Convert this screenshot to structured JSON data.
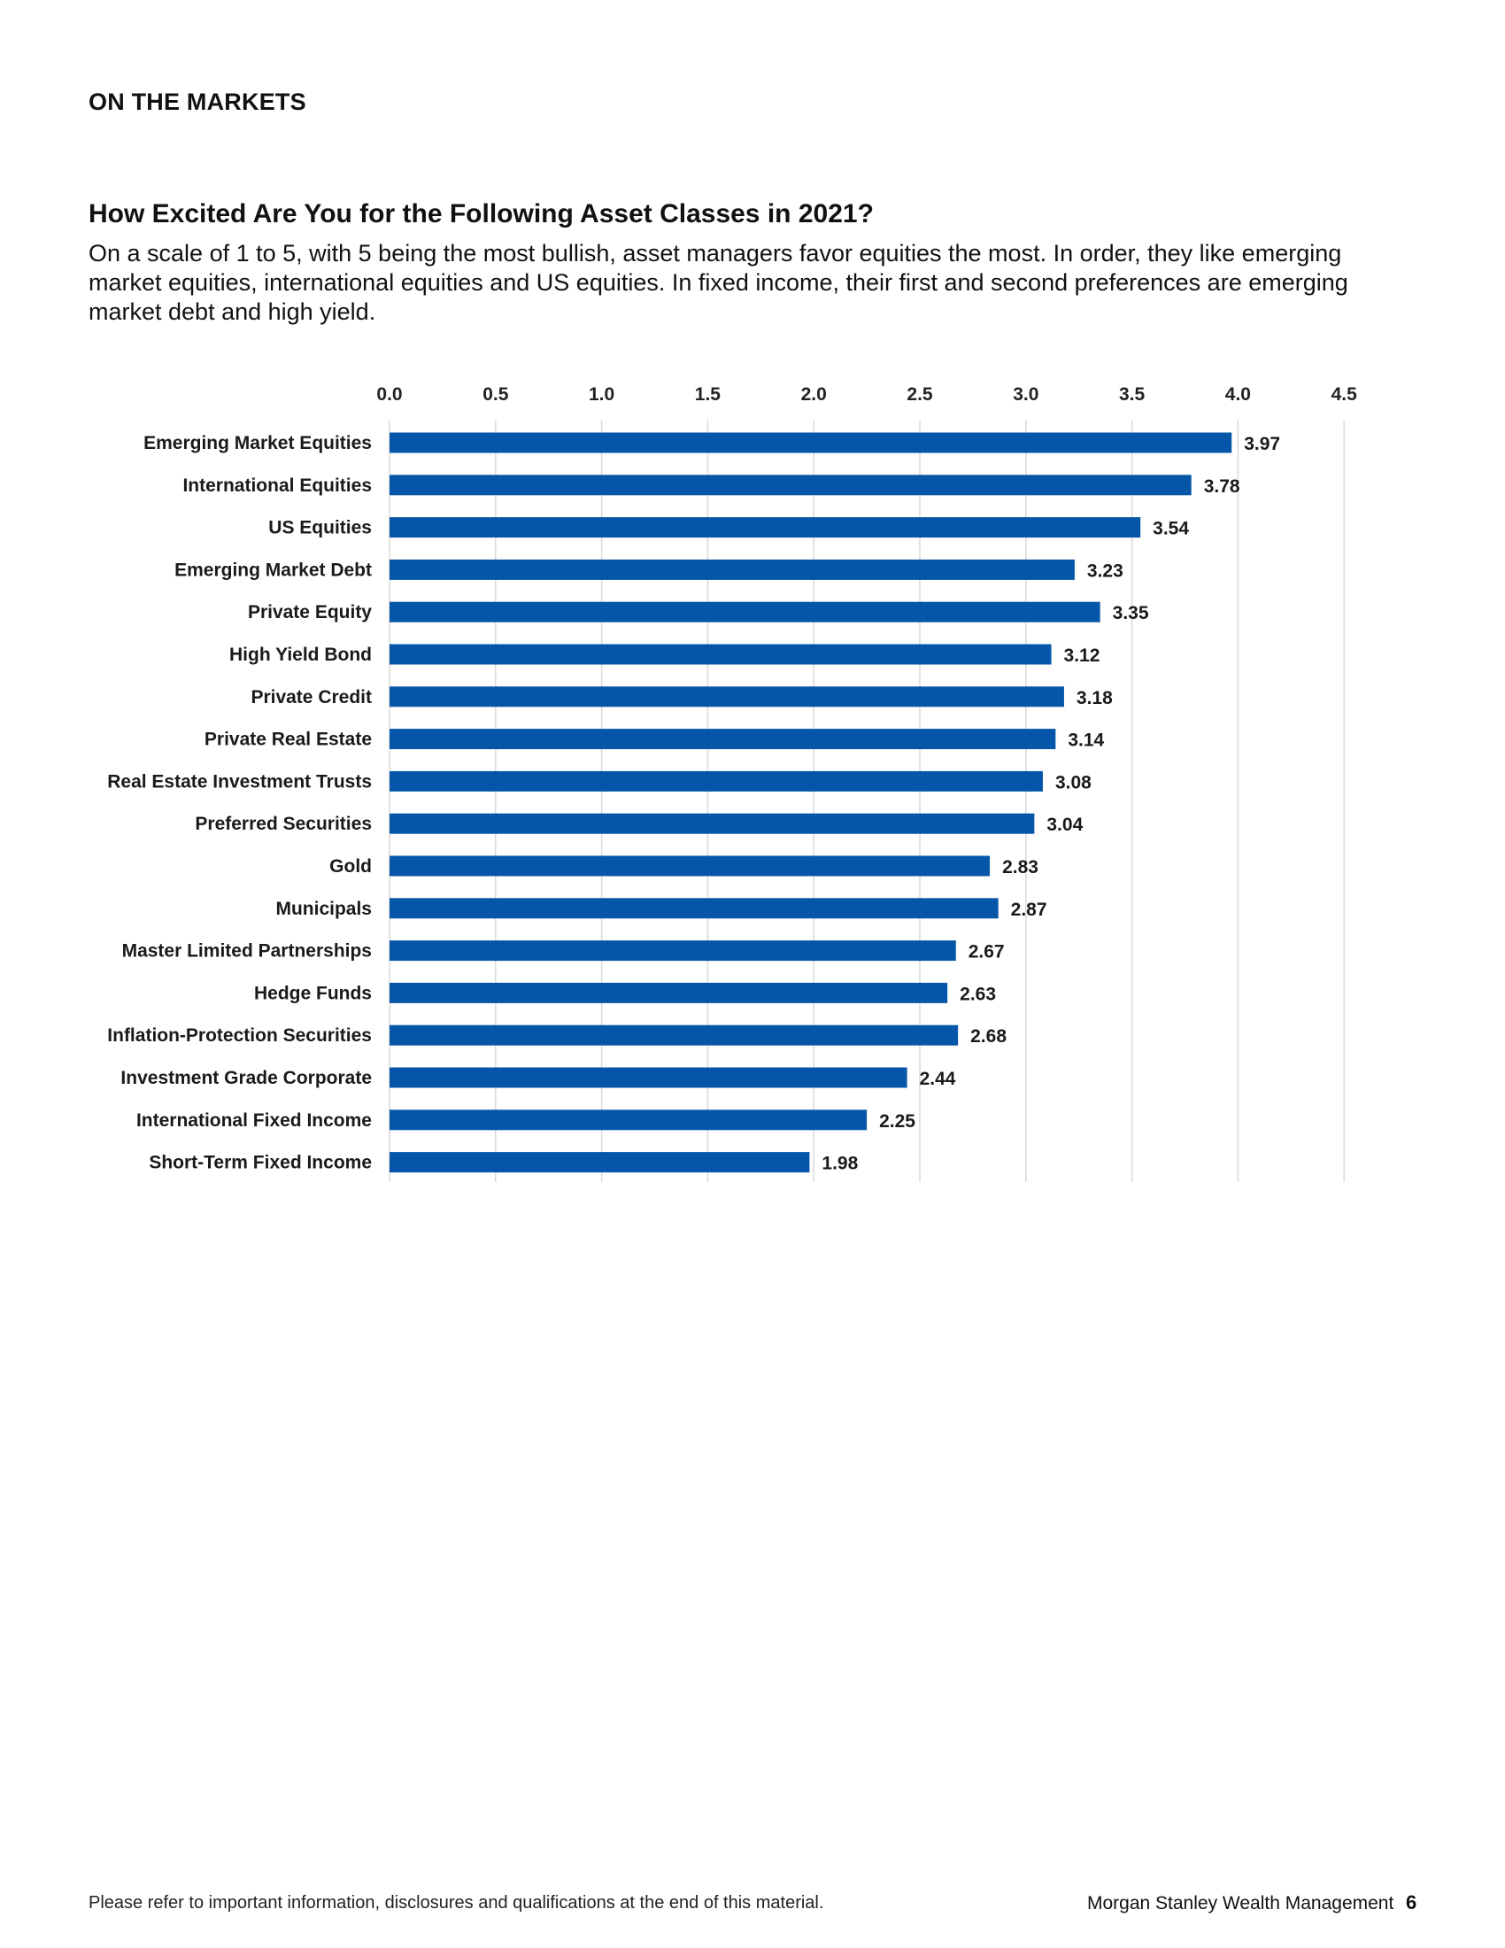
{
  "header": {
    "section": "ON THE MARKETS"
  },
  "figure": {
    "title": "How Excited Are You for the Following Asset Classes in 2021?",
    "description": "On a scale of 1 to 5, with 5 being the most bullish, asset managers favor equities the most. In order, they like emerging market equities, international equities and US equities. In fixed income, their first and second preferences are emerging market debt and high yield."
  },
  "chart_data": {
    "type": "bar",
    "orientation": "horizontal",
    "categories": [
      "Emerging Market Equities",
      "International Equities",
      "US Equities",
      "Emerging Market Debt",
      "Private Equity",
      "High Yield Bond",
      "Private Credit",
      "Private Real Estate",
      "Real Estate Investment Trusts",
      "Preferred Securities",
      "Gold",
      "Municipals",
      "Master Limited Partnerships",
      "Hedge Funds",
      "Inflation-Protection Securities",
      "Investment Grade Corporate",
      "International Fixed Income",
      "Short-Term Fixed Income"
    ],
    "values": [
      3.97,
      3.78,
      3.54,
      3.23,
      3.35,
      3.12,
      3.18,
      3.14,
      3.08,
      3.04,
      2.83,
      2.87,
      2.67,
      2.63,
      2.68,
      2.44,
      2.25,
      1.98
    ],
    "value_labels": [
      "3.97",
      "3.78",
      "3.54",
      "3.23",
      "3.35",
      "3.12",
      "3.18",
      "3.14",
      "3.08",
      "3.04",
      "2.83",
      "2.87",
      "2.67",
      "2.63",
      "2.68",
      "2.44",
      "2.25",
      "1.98"
    ],
    "xlim": [
      0,
      4.5
    ],
    "ticks": [
      0,
      0.5,
      1.0,
      1.5,
      2.0,
      2.5,
      3.0,
      3.5,
      4.0,
      4.5
    ],
    "tick_labels": [
      "0.0",
      "0.5",
      "1.0",
      "1.5",
      "2.0",
      "2.5",
      "3.0",
      "3.5",
      "4.0",
      "4.5"
    ],
    "axis_position": "top",
    "grid": true,
    "legend": "none",
    "colors": {
      "bar": "#0556a8",
      "grid": "#d9d9d9"
    }
  },
  "footer": {
    "disclaimer": "Please refer to important information, disclosures and qualifications at the end of this material.",
    "brand": "Morgan Stanley Wealth Management",
    "page": "6"
  }
}
